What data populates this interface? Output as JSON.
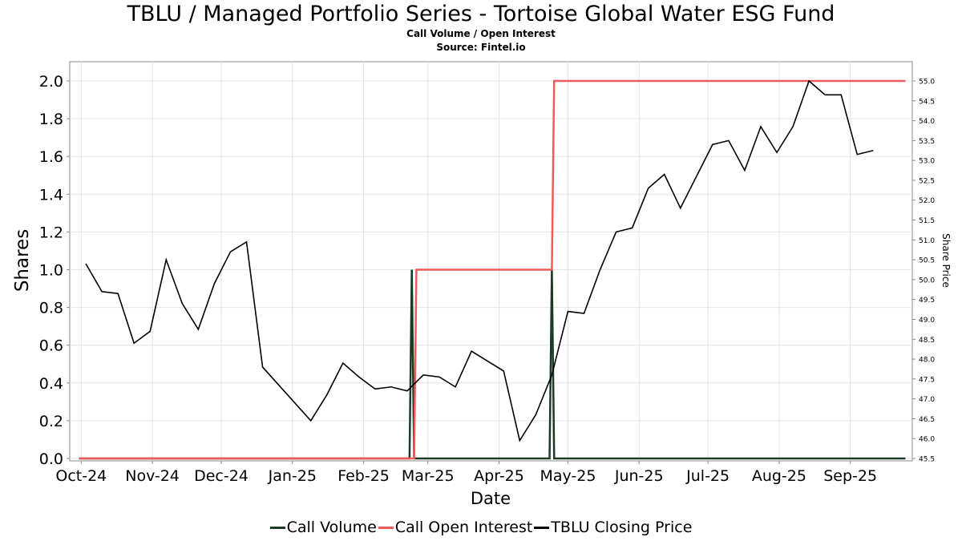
{
  "chart_data": {
    "type": "line",
    "title": "TBLU / Managed Portfolio Series - Tortoise Global Water ESG Fund",
    "subtitle_lines": [
      "Call Volume / Open Interest",
      "Source: Fintel.io"
    ],
    "xlabel": "Date",
    "ylabel": "Shares",
    "y2label": "Share Price",
    "x_domain": [
      "2024-09-26",
      "2025-09-28"
    ],
    "x_ticks": [
      {
        "date": "2024-10-01",
        "label": "Oct-24"
      },
      {
        "date": "2024-11-01",
        "label": "Nov-24"
      },
      {
        "date": "2024-12-01",
        "label": "Dec-24"
      },
      {
        "date": "2025-01-01",
        "label": "Jan-25"
      },
      {
        "date": "2025-02-01",
        "label": "Feb-25"
      },
      {
        "date": "2025-03-01",
        "label": "Mar-25"
      },
      {
        "date": "2025-04-01",
        "label": "Apr-25"
      },
      {
        "date": "2025-05-01",
        "label": "May-25"
      },
      {
        "date": "2025-06-01",
        "label": "Jun-25"
      },
      {
        "date": "2025-07-01",
        "label": "Jul-25"
      },
      {
        "date": "2025-08-01",
        "label": "Aug-25"
      },
      {
        "date": "2025-09-01",
        "label": "Sep-25"
      }
    ],
    "ylim": [
      0,
      2.1
    ],
    "y_ticks": [
      "0.0",
      "0.2",
      "0.4",
      "0.6",
      "0.8",
      "1.0",
      "1.2",
      "1.4",
      "1.6",
      "1.8",
      "2.0"
    ],
    "y2lim": [
      45.5,
      55.5
    ],
    "y2_ticks": [
      "45.5",
      "46.0",
      "46.5",
      "47.0",
      "47.5",
      "48.0",
      "48.5",
      "49.0",
      "49.5",
      "50.0",
      "50.5",
      "51.0",
      "51.5",
      "52.0",
      "52.5",
      "53.0",
      "53.5",
      "54.0",
      "54.5",
      "55.0"
    ],
    "grid": true,
    "legend_position": "bottom",
    "series": [
      {
        "name": "Call Volume",
        "color": "#1c3a24",
        "axis": "left",
        "points": [
          [
            "2024-09-30",
            0
          ],
          [
            "2025-02-21",
            0
          ],
          [
            "2025-02-22",
            1
          ],
          [
            "2025-02-23",
            0
          ],
          [
            "2025-04-23",
            0
          ],
          [
            "2025-04-24",
            1
          ],
          [
            "2025-04-25",
            0
          ],
          [
            "2025-09-25",
            0
          ]
        ]
      },
      {
        "name": "Call Open Interest",
        "color": "#f05a5a",
        "axis": "left",
        "points": [
          [
            "2024-09-30",
            0
          ],
          [
            "2025-02-23",
            0
          ],
          [
            "2025-02-24",
            1
          ],
          [
            "2025-04-24",
            1
          ],
          [
            "2025-04-25",
            2
          ],
          [
            "2025-09-25",
            2
          ]
        ]
      },
      {
        "name": "TBLU Closing Price",
        "color": "#000000",
        "axis": "right",
        "points": [
          [
            "2024-10-03",
            50.4
          ],
          [
            "2024-10-10",
            49.7
          ],
          [
            "2024-10-17",
            49.65
          ],
          [
            "2024-10-24",
            48.4
          ],
          [
            "2024-10-31",
            48.7
          ],
          [
            "2024-11-07",
            50.5
          ],
          [
            "2024-11-14",
            49.4
          ],
          [
            "2024-11-21",
            48.75
          ],
          [
            "2024-11-28",
            49.9
          ],
          [
            "2024-12-05",
            50.7
          ],
          [
            "2024-12-12",
            50.95
          ],
          [
            "2024-12-19",
            47.8
          ],
          [
            "2025-01-09",
            46.45
          ],
          [
            "2025-01-16",
            47.1
          ],
          [
            "2025-01-23",
            47.9
          ],
          [
            "2025-01-30",
            47.55
          ],
          [
            "2025-02-06",
            47.25
          ],
          [
            "2025-02-13",
            47.3
          ],
          [
            "2025-02-20",
            47.2
          ],
          [
            "2025-02-27",
            47.6
          ],
          [
            "2025-03-06",
            47.55
          ],
          [
            "2025-03-13",
            47.3
          ],
          [
            "2025-03-20",
            48.2
          ],
          [
            "2025-04-03",
            47.7
          ],
          [
            "2025-04-10",
            45.95
          ],
          [
            "2025-04-17",
            46.6
          ],
          [
            "2025-04-24",
            47.6
          ],
          [
            "2025-05-01",
            49.2
          ],
          [
            "2025-05-08",
            49.15
          ],
          [
            "2025-05-15",
            50.25
          ],
          [
            "2025-05-22",
            51.2
          ],
          [
            "2025-05-29",
            51.3
          ],
          [
            "2025-06-05",
            52.3
          ],
          [
            "2025-06-12",
            52.65
          ],
          [
            "2025-06-19",
            51.8
          ],
          [
            "2025-06-26",
            52.6
          ],
          [
            "2025-07-03",
            53.4
          ],
          [
            "2025-07-10",
            53.5
          ],
          [
            "2025-07-17",
            52.75
          ],
          [
            "2025-07-24",
            53.85
          ],
          [
            "2025-07-31",
            53.2
          ],
          [
            "2025-08-07",
            53.85
          ],
          [
            "2025-08-14",
            55.0
          ],
          [
            "2025-08-21",
            54.65
          ],
          [
            "2025-08-28",
            54.65
          ],
          [
            "2025-09-04",
            53.15
          ],
          [
            "2025-09-11",
            53.25
          ]
        ]
      }
    ]
  }
}
